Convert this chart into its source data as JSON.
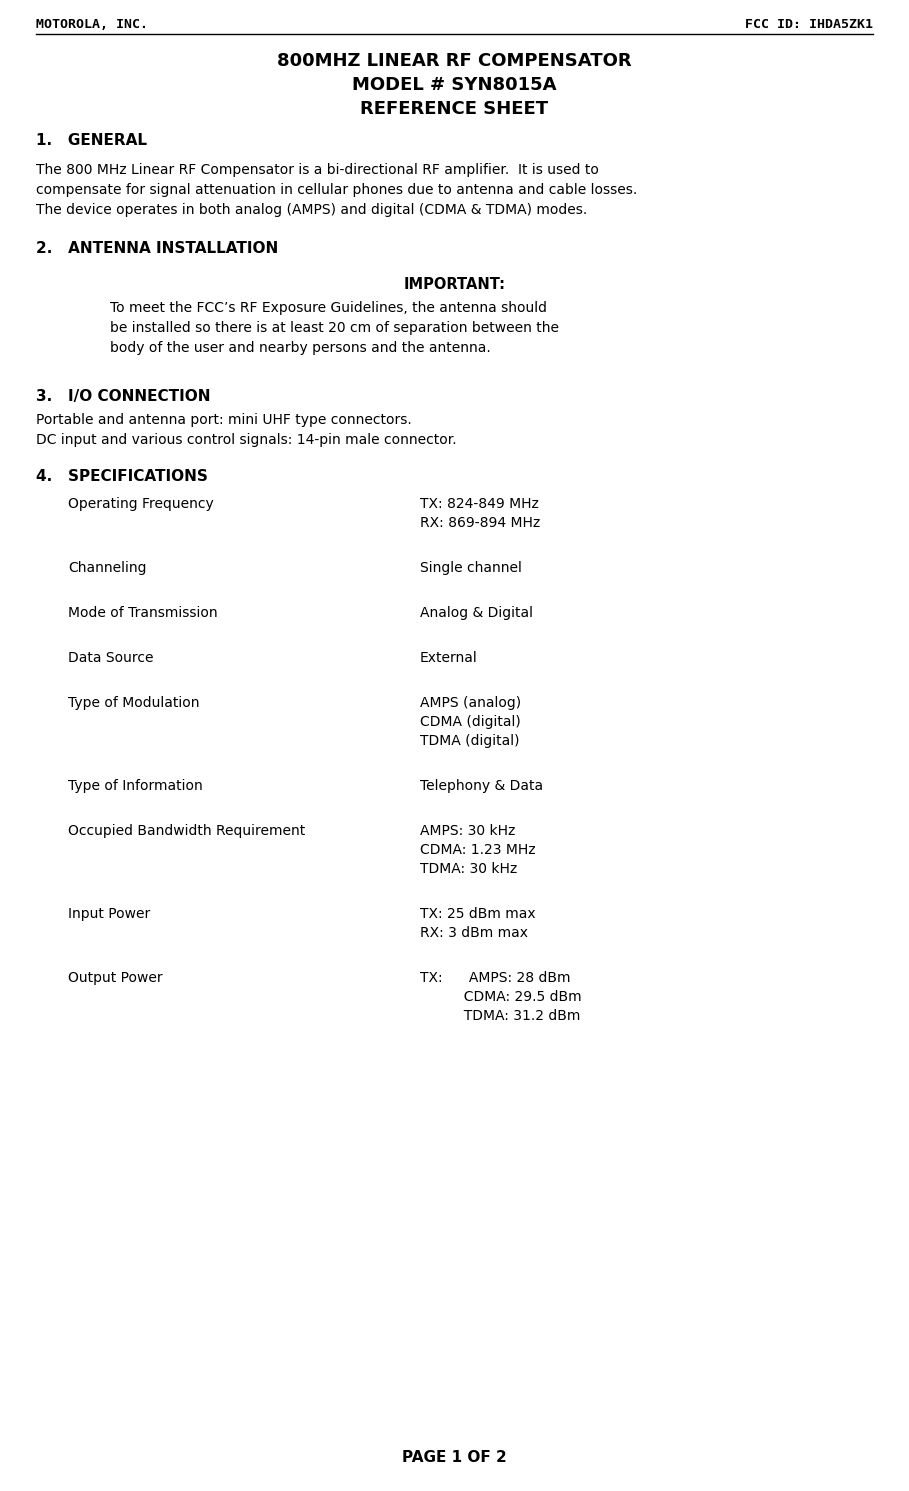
{
  "header_left": "MOTOROLA, INC.",
  "header_right": "FCC ID: IHDA5ZK1",
  "title_line1": "800MHZ LINEAR RF COMPENSATOR",
  "title_line2": "MODEL # SYN8015A",
  "title_line3": "REFERENCE SHEET",
  "section1_label": "1.   GENERAL",
  "section1_body_lines": [
    "The 800 MHz Linear RF Compensator is a bi-directional RF amplifier.  It is used to",
    "compensate for signal attenuation in cellular phones due to antenna and cable losses.",
    "The device operates in both analog (AMPS) and digital (CDMA & TDMA) modes."
  ],
  "section2_label": "2.   ANTENNA INSTALLATION",
  "important_label": "IMPORTANT:",
  "important_body_lines": [
    "To meet the FCC’s RF Exposure Guidelines, the antenna should",
    "be installed so there is at least 20 cm of separation between the",
    "body of the user and nearby persons and the antenna."
  ],
  "section3_label": "3.   I/O CONNECTION",
  "section3_body_lines": [
    "Portable and antenna port: mini UHF type connectors.",
    "DC input and various control signals: 14-pin male connector."
  ],
  "section4_label": "4.   SPECIFICATIONS",
  "specs": [
    {
      "label": "Operating Frequency",
      "value_lines": [
        "TX: 824-849 MHz",
        "RX: 869-894 MHz"
      ]
    },
    {
      "label": "Channeling",
      "value_lines": [
        "Single channel"
      ]
    },
    {
      "label": "Mode of Transmission",
      "value_lines": [
        "Analog & Digital"
      ]
    },
    {
      "label": "Data Source",
      "value_lines": [
        "External"
      ]
    },
    {
      "label": "Type of Modulation",
      "value_lines": [
        "AMPS (analog)",
        "CDMA (digital)",
        "TDMA (digital)"
      ]
    },
    {
      "label": "Type of Information",
      "value_lines": [
        "Telephony & Data"
      ]
    },
    {
      "label": "Occupied Bandwidth Requirement",
      "value_lines": [
        "AMPS: 30 kHz",
        "CDMA: 1.23 MHz",
        "TDMA: 30 kHz"
      ]
    },
    {
      "label": "Input Power",
      "value_lines": [
        "TX: 25 dBm max",
        "RX: 3 dBm max"
      ]
    },
    {
      "label": "Output Power",
      "value_lines": [
        "TX:      AMPS: 28 dBm",
        "          CDMA: 29.5 dBm",
        "          TDMA: 31.2 dBm"
      ]
    }
  ],
  "footer": "PAGE 1 OF 2",
  "bg_color": "#ffffff",
  "text_color": "#000000"
}
